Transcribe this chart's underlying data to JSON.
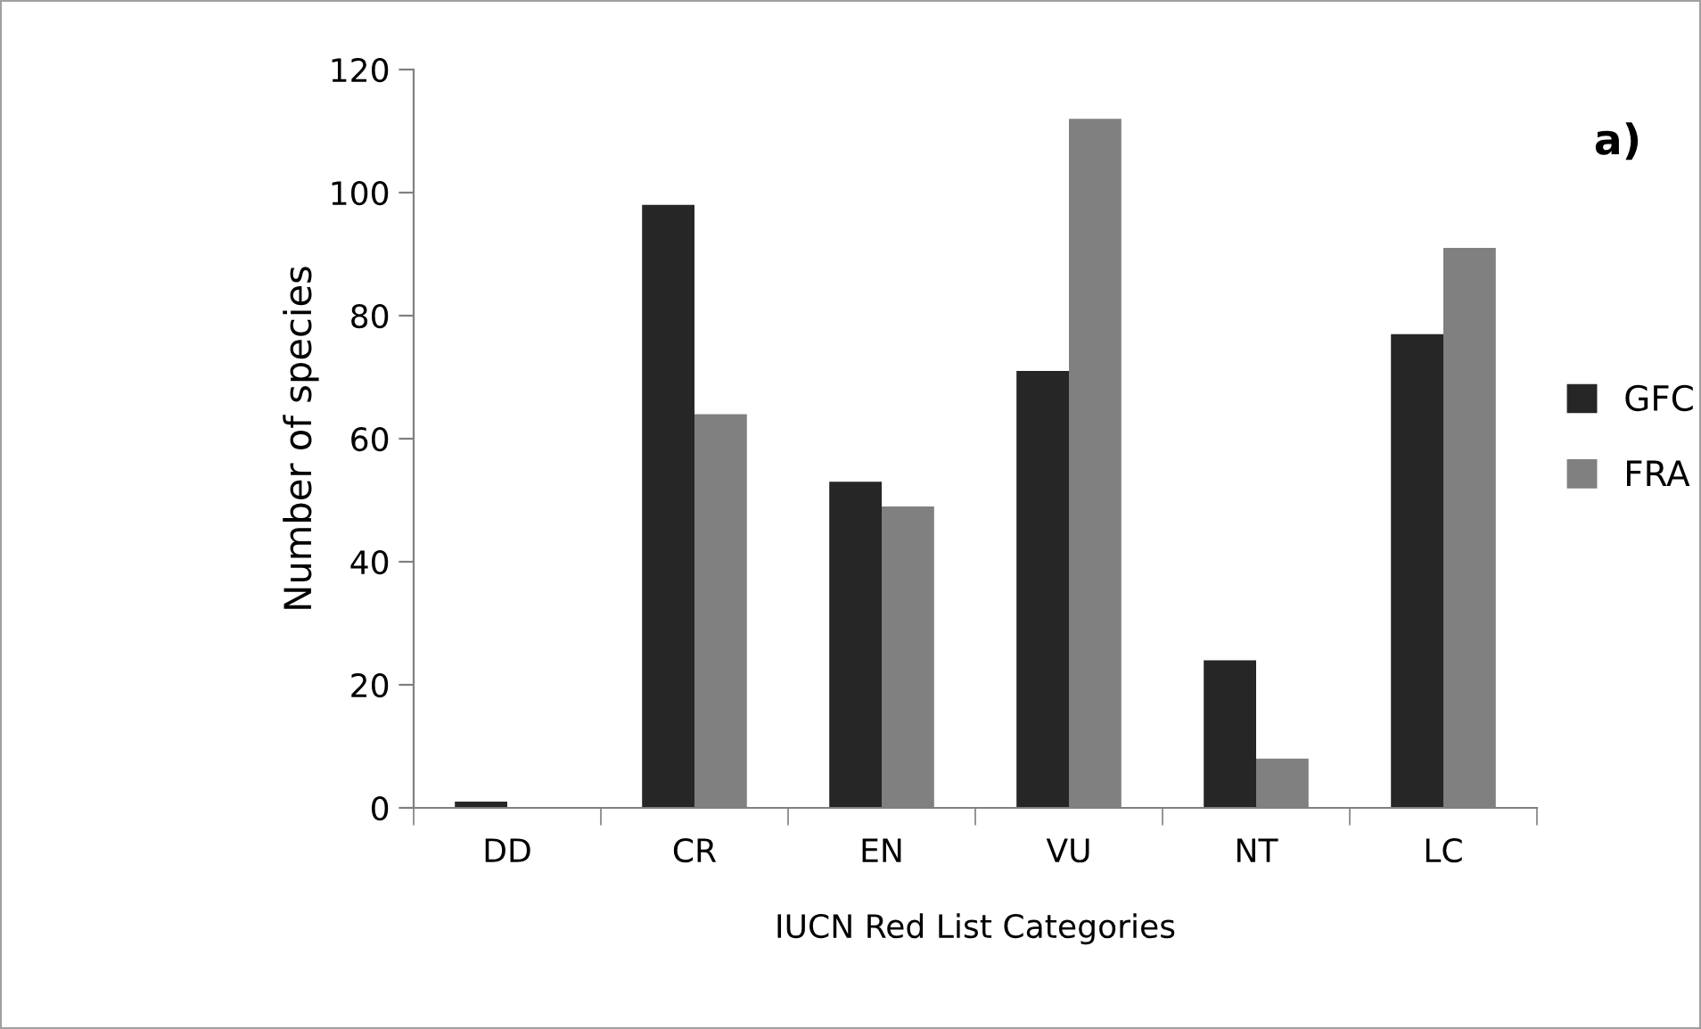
{
  "chart_data": {
    "type": "bar",
    "xlabel": "IUCN Red List Categories",
    "ylabel": "Number of species",
    "categories": [
      "DD",
      "CR",
      "EN",
      "VU",
      "NT",
      "LC"
    ],
    "series": [
      {
        "name": "GFC",
        "color": "#262626",
        "values": [
          1,
          98,
          53,
          71,
          24,
          77
        ]
      },
      {
        "name": "FRA",
        "color": "#808080",
        "values": [
          0,
          64,
          49,
          112,
          8,
          91
        ]
      }
    ],
    "ylim": [
      0,
      120
    ],
    "yticks": [
      0,
      20,
      40,
      60,
      80,
      100,
      120
    ],
    "grid": false,
    "legend": "right",
    "annotations": [
      "a)"
    ]
  }
}
